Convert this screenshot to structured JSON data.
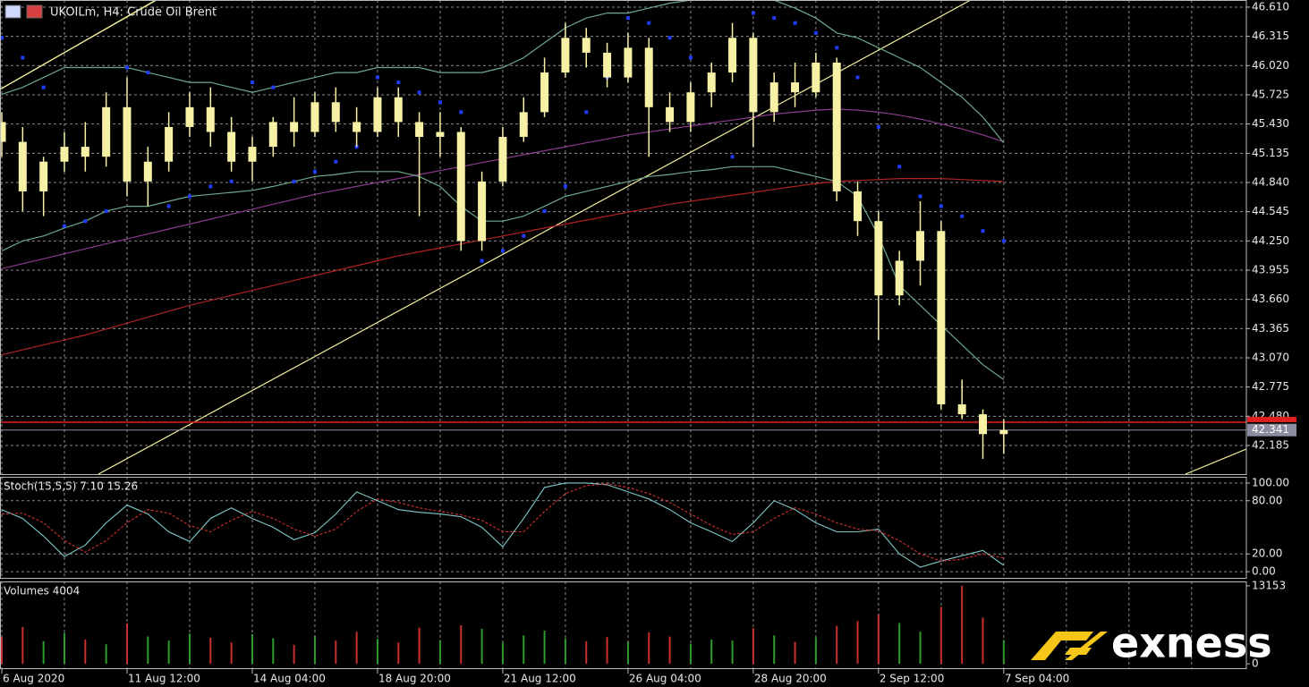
{
  "brand": "exness",
  "chart_data": [
    {
      "type": "candlestick",
      "title": "UKOILm, H4:  Crude Oil Brent",
      "categories": [
        "6 Aug 2020",
        null,
        null,
        null,
        null,
        null,
        "11 Aug 12:00",
        null,
        null,
        null,
        null,
        null,
        "14 Aug 04:00",
        null,
        null,
        null,
        null,
        null,
        "18 Aug 20:00",
        null,
        null,
        null,
        null,
        null,
        "21 Aug 12:00",
        null,
        null,
        null,
        null,
        null,
        "26 Aug 04:00",
        null,
        null,
        null,
        null,
        null,
        "28 Aug 20:00",
        null,
        null,
        null,
        null,
        null,
        "2 Sep 12:00",
        null,
        null,
        null,
        null,
        null,
        "7 Sep 04:00"
      ],
      "open": [
        45.45,
        45.25,
        44.75,
        45.05,
        45.2,
        45.1,
        45.6,
        44.85,
        45.05,
        45.4,
        45.6,
        45.35,
        45.05,
        45.2,
        45.45,
        45.35,
        45.65,
        45.45,
        45.35,
        45.7,
        45.45,
        45.3,
        45.35,
        44.25,
        44.85,
        45.3,
        45.55,
        45.95,
        46.3,
        46.15,
        45.9,
        46.2,
        45.6,
        45.45,
        45.75,
        45.95,
        46.3,
        45.55,
        45.85,
        45.75,
        46.05,
        44.75,
        44.45,
        43.7,
        44.05,
        44.35,
        42.6,
        42.5,
        42.3
      ],
      "high": [
        45.55,
        45.4,
        45.1,
        45.35,
        45.45,
        45.75,
        45.9,
        45.2,
        45.55,
        45.75,
        45.8,
        45.5,
        45.3,
        45.5,
        45.7,
        45.75,
        45.8,
        45.6,
        45.8,
        45.8,
        45.55,
        45.55,
        45.4,
        44.95,
        45.4,
        45.7,
        46.1,
        46.45,
        46.4,
        46.25,
        46.35,
        46.3,
        45.75,
        45.85,
        46.05,
        46.45,
        46.35,
        45.95,
        46.05,
        46.15,
        46.1,
        44.85,
        44.55,
        44.15,
        44.65,
        44.45,
        42.85,
        42.55,
        42.45
      ],
      "low": [
        45.1,
        44.55,
        44.5,
        44.95,
        44.95,
        45.0,
        44.7,
        44.6,
        44.95,
        45.3,
        45.2,
        44.95,
        44.85,
        45.1,
        45.2,
        45.3,
        45.35,
        45.2,
        45.3,
        45.3,
        44.5,
        45.1,
        44.15,
        44.15,
        44.8,
        45.25,
        45.5,
        45.9,
        46.0,
        45.8,
        45.85,
        45.1,
        45.35,
        45.35,
        45.6,
        45.85,
        45.2,
        45.45,
        45.6,
        45.7,
        44.65,
        44.3,
        43.25,
        43.6,
        43.8,
        42.55,
        42.45,
        42.05,
        42.1
      ],
      "close": [
        45.25,
        44.75,
        45.05,
        45.2,
        45.1,
        45.6,
        44.85,
        45.05,
        45.4,
        45.6,
        45.35,
        45.05,
        45.2,
        45.45,
        45.35,
        45.65,
        45.45,
        45.35,
        45.7,
        45.45,
        45.3,
        45.35,
        44.25,
        44.85,
        45.3,
        45.55,
        45.95,
        46.3,
        46.15,
        45.9,
        46.2,
        45.6,
        45.45,
        45.75,
        45.95,
        46.3,
        45.55,
        45.85,
        45.75,
        46.05,
        44.75,
        44.45,
        43.7,
        44.05,
        44.35,
        42.6,
        42.5,
        42.3,
        42.34
      ],
      "color": "#f7f1a6",
      "lines": [
        {
          "color": "#b22222",
          "values": [
            43.1,
            43.15,
            43.2,
            43.25,
            43.3,
            43.36,
            43.42,
            43.48,
            43.54,
            43.6,
            43.65,
            43.7,
            43.75,
            43.8,
            43.85,
            43.9,
            43.95,
            44.0,
            44.05,
            44.1,
            44.14,
            44.18,
            44.22,
            44.26,
            44.3,
            44.34,
            44.38,
            44.42,
            44.46,
            44.5,
            44.54,
            44.58,
            44.62,
            44.65,
            44.68,
            44.71,
            44.74,
            44.77,
            44.8,
            44.83,
            44.85,
            44.86,
            44.87,
            44.88,
            44.88,
            44.88,
            44.87,
            44.86,
            44.85
          ]
        },
        {
          "color": "#8b3a8b",
          "values": [
            43.97,
            44.02,
            44.07,
            44.12,
            44.17,
            44.22,
            44.27,
            44.32,
            44.37,
            44.42,
            44.47,
            44.52,
            44.57,
            44.62,
            44.67,
            44.72,
            44.76,
            44.8,
            44.84,
            44.88,
            44.92,
            44.96,
            45.0,
            45.04,
            45.08,
            45.12,
            45.16,
            45.2,
            45.24,
            45.28,
            45.32,
            45.35,
            45.38,
            45.41,
            45.44,
            45.47,
            45.5,
            45.53,
            45.55,
            45.57,
            45.58,
            45.57,
            45.55,
            45.52,
            45.48,
            45.43,
            45.38,
            45.32,
            45.25
          ]
        },
        {
          "color": "#6fa88a",
          "values": [
            45.73,
            45.8,
            45.9,
            46.0,
            46.0,
            46.0,
            46.0,
            45.95,
            45.9,
            45.85,
            45.85,
            45.8,
            45.75,
            45.8,
            45.85,
            45.9,
            45.95,
            45.95,
            46.0,
            46.0,
            46.0,
            45.95,
            45.95,
            45.95,
            46.0,
            46.1,
            46.25,
            46.4,
            46.5,
            46.55,
            46.55,
            46.6,
            46.65,
            46.68,
            46.7,
            46.7,
            46.7,
            46.68,
            46.6,
            46.5,
            46.35,
            46.3,
            46.2,
            46.1,
            46.0,
            45.85,
            45.7,
            45.5,
            45.24
          ]
        },
        {
          "color": "#6fa88a",
          "values": [
            44.15,
            44.25,
            44.3,
            44.38,
            44.45,
            44.55,
            44.6,
            44.6,
            44.65,
            44.7,
            44.72,
            44.74,
            44.76,
            44.8,
            44.85,
            44.9,
            44.92,
            44.95,
            44.95,
            44.95,
            44.9,
            44.8,
            44.6,
            44.45,
            44.45,
            44.5,
            44.6,
            44.7,
            44.75,
            44.8,
            44.85,
            44.9,
            44.92,
            44.95,
            44.97,
            45.0,
            45.0,
            45.0,
            44.95,
            44.9,
            44.85,
            44.7,
            44.3,
            43.8,
            43.6,
            43.4,
            43.2,
            43.0,
            42.85
          ]
        }
      ],
      "sar": {
        "color": "#1f3cff",
        "values": [
          46.3,
          46.1,
          45.8,
          44.4,
          44.45,
          44.55,
          46.0,
          45.95,
          44.6,
          44.7,
          44.8,
          44.85,
          45.85,
          45.8,
          44.85,
          44.95,
          45.05,
          45.2,
          45.9,
          45.85,
          45.75,
          45.65,
          45.55,
          44.05,
          44.15,
          44.3,
          44.55,
          44.8,
          45.55,
          45.9,
          46.5,
          46.45,
          46.3,
          46.1,
          45.9,
          45.1,
          46.55,
          46.5,
          46.45,
          46.35,
          46.2,
          45.9,
          45.4,
          45.0,
          44.7,
          44.6,
          44.5,
          44.35,
          44.25
        ]
      },
      "current_price": 42.341,
      "ask_line": 42.42,
      "ylim": [
        41.896,
        46.682
      ],
      "yticks": [
        {
          "value": 46.61,
          "label": "46.610"
        },
        46.315,
        {
          "value": 46.02,
          "label": "46.020"
        },
        45.725,
        {
          "value": 45.43,
          "label": "45.430"
        },
        45.135,
        {
          "value": 44.84,
          "label": "44.840"
        },
        44.545,
        {
          "value": 44.25,
          "label": "44.250"
        },
        43.955,
        {
          "value": 43.66,
          "label": "43.660"
        },
        43.365,
        {
          "value": 43.07,
          "label": "43.070"
        },
        42.775,
        {
          "value": 42.48,
          "label": "42.480"
        },
        42.185
      ],
      "grid": true
    },
    {
      "type": "line",
      "title": "Stoch(15,5,5) 7.10 15.26",
      "series": [
        {
          "color": "#7fc8c8",
          "dash": false,
          "values": [
            70,
            60,
            40,
            17,
            30,
            55,
            75,
            65,
            45,
            34,
            60,
            72,
            60,
            50,
            36,
            44,
            65,
            90,
            80,
            70,
            67,
            65,
            62,
            50,
            28,
            60,
            95,
            100,
            100,
            98,
            90,
            82,
            70,
            55,
            45,
            34,
            55,
            80,
            70,
            55,
            45,
            45,
            48,
            20,
            5,
            12,
            18,
            24,
            7.1
          ]
        },
        {
          "color": "#d03030",
          "dash": true,
          "values": [
            65,
            66,
            55,
            35,
            22,
            35,
            55,
            70,
            66,
            52,
            45,
            58,
            68,
            60,
            48,
            40,
            48,
            68,
            82,
            78,
            72,
            68,
            64,
            58,
            45,
            45,
            68,
            88,
            97,
            99,
            95,
            88,
            78,
            65,
            52,
            42,
            45,
            60,
            72,
            65,
            55,
            48,
            46,
            35,
            20,
            12,
            14,
            20,
            15.26
          ]
        }
      ],
      "ylim": [
        -8,
        107
      ],
      "yticks": [
        {
          "value": 100,
          "label": "100.00"
        },
        {
          "value": 80,
          "label": "80.00"
        },
        {
          "value": 20,
          "label": "20.00"
        },
        {
          "value": 0,
          "label": "0.00"
        }
      ],
      "grid": true
    },
    {
      "type": "bar",
      "title": "Volumes 4004",
      "values": [
        4500,
        6200,
        3800,
        5200,
        4100,
        3300,
        6800,
        4600,
        3900,
        5100,
        4400,
        3600,
        5000,
        4300,
        3200,
        4700,
        3900,
        5400,
        4200,
        3600,
        6100,
        4000,
        6500,
        5900,
        3500,
        4800,
        5600,
        4300,
        3800,
        4500,
        3700,
        5300,
        4600,
        3400,
        4100,
        3900,
        6000,
        4800,
        3700,
        4400,
        6400,
        7200,
        8300,
        6900,
        5400,
        9600,
        13153,
        7800,
        4004
      ],
      "up_color": "#2f9a2f",
      "down_color": "#c83030",
      "ylim": [
        -900,
        13900
      ],
      "yticks": [
        13153,
        0
      ],
      "grid": false
    }
  ]
}
